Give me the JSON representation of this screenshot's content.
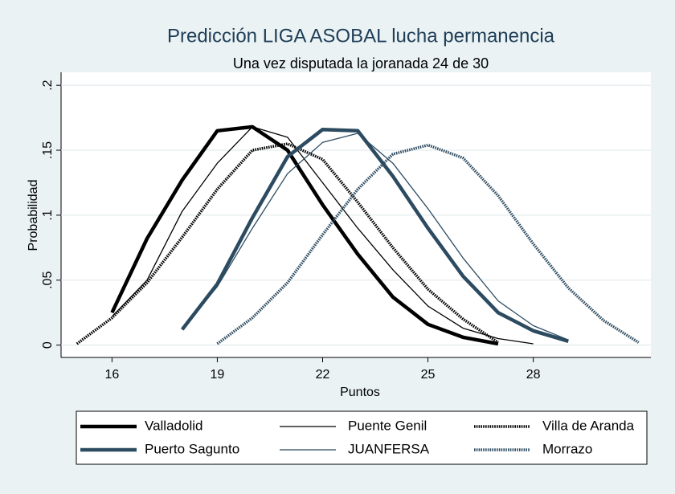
{
  "chart_data": {
    "type": "line",
    "title": "Predicción LIGA ASOBAL lucha permanencia",
    "subtitle": "Una vez disputada la joranada 24 de 30",
    "x_label": "Puntos",
    "y_label": "Probabilidad",
    "x": [
      15,
      16,
      17,
      18,
      19,
      20,
      21,
      22,
      23,
      24,
      25,
      26,
      27,
      28,
      29,
      30,
      31
    ],
    "series": [
      {
        "name": "Valladolid",
        "color": "#000000",
        "style": "thick",
        "values": [
          null,
          0.025,
          0.082,
          0.127,
          0.165,
          0.168,
          0.15,
          0.108,
          0.07,
          0.037,
          0.016,
          0.006,
          0.001,
          null,
          null,
          null,
          null
        ]
      },
      {
        "name": "Puente Genil",
        "color": "#000000",
        "style": "thin",
        "values": [
          null,
          0.022,
          0.05,
          0.103,
          0.14,
          0.168,
          0.16,
          0.125,
          0.09,
          0.058,
          0.03,
          0.013,
          0.005,
          0.001,
          null,
          null,
          null
        ]
      },
      {
        "name": "Villa de Aranda",
        "color": "#000000",
        "style": "dotted",
        "values": [
          0.001,
          0.021,
          0.048,
          0.083,
          0.12,
          0.15,
          0.155,
          0.143,
          0.11,
          0.075,
          0.043,
          0.02,
          0.002,
          null,
          null,
          null,
          null
        ]
      },
      {
        "name": "Puerto Sagunto",
        "color": "#2c4b61",
        "style": "thick",
        "values": [
          null,
          null,
          null,
          0.012,
          0.047,
          0.098,
          0.145,
          0.166,
          0.165,
          0.13,
          0.09,
          0.053,
          0.025,
          0.011,
          0.003,
          null,
          null
        ]
      },
      {
        "name": "JUANFERSA",
        "color": "#2c4b61",
        "style": "thin",
        "values": [
          null,
          null,
          null,
          0.012,
          0.045,
          0.09,
          0.132,
          0.156,
          0.163,
          0.14,
          0.105,
          0.067,
          0.034,
          0.015,
          0.004,
          null,
          null
        ]
      },
      {
        "name": "Morrazo",
        "color": "#2c4b61",
        "style": "dotted",
        "values": [
          null,
          null,
          null,
          null,
          0.001,
          0.021,
          0.048,
          0.085,
          0.12,
          0.147,
          0.154,
          0.144,
          0.115,
          0.078,
          0.044,
          0.019,
          0.002
        ]
      }
    ],
    "xlim": [
      14.55,
      31.35
    ],
    "ylim": [
      -0.0095,
      0.21
    ],
    "xticks": [
      16,
      19,
      22,
      25,
      28
    ],
    "yticks": [
      0,
      {
        "value": 0.05,
        "label": ".05"
      },
      {
        "value": 0.1,
        "label": ".1"
      },
      {
        "value": 0.15,
        "label": ".15"
      },
      {
        "value": 0.2,
        "label": ".2"
      }
    ],
    "grid": true,
    "legend": "bottom"
  }
}
